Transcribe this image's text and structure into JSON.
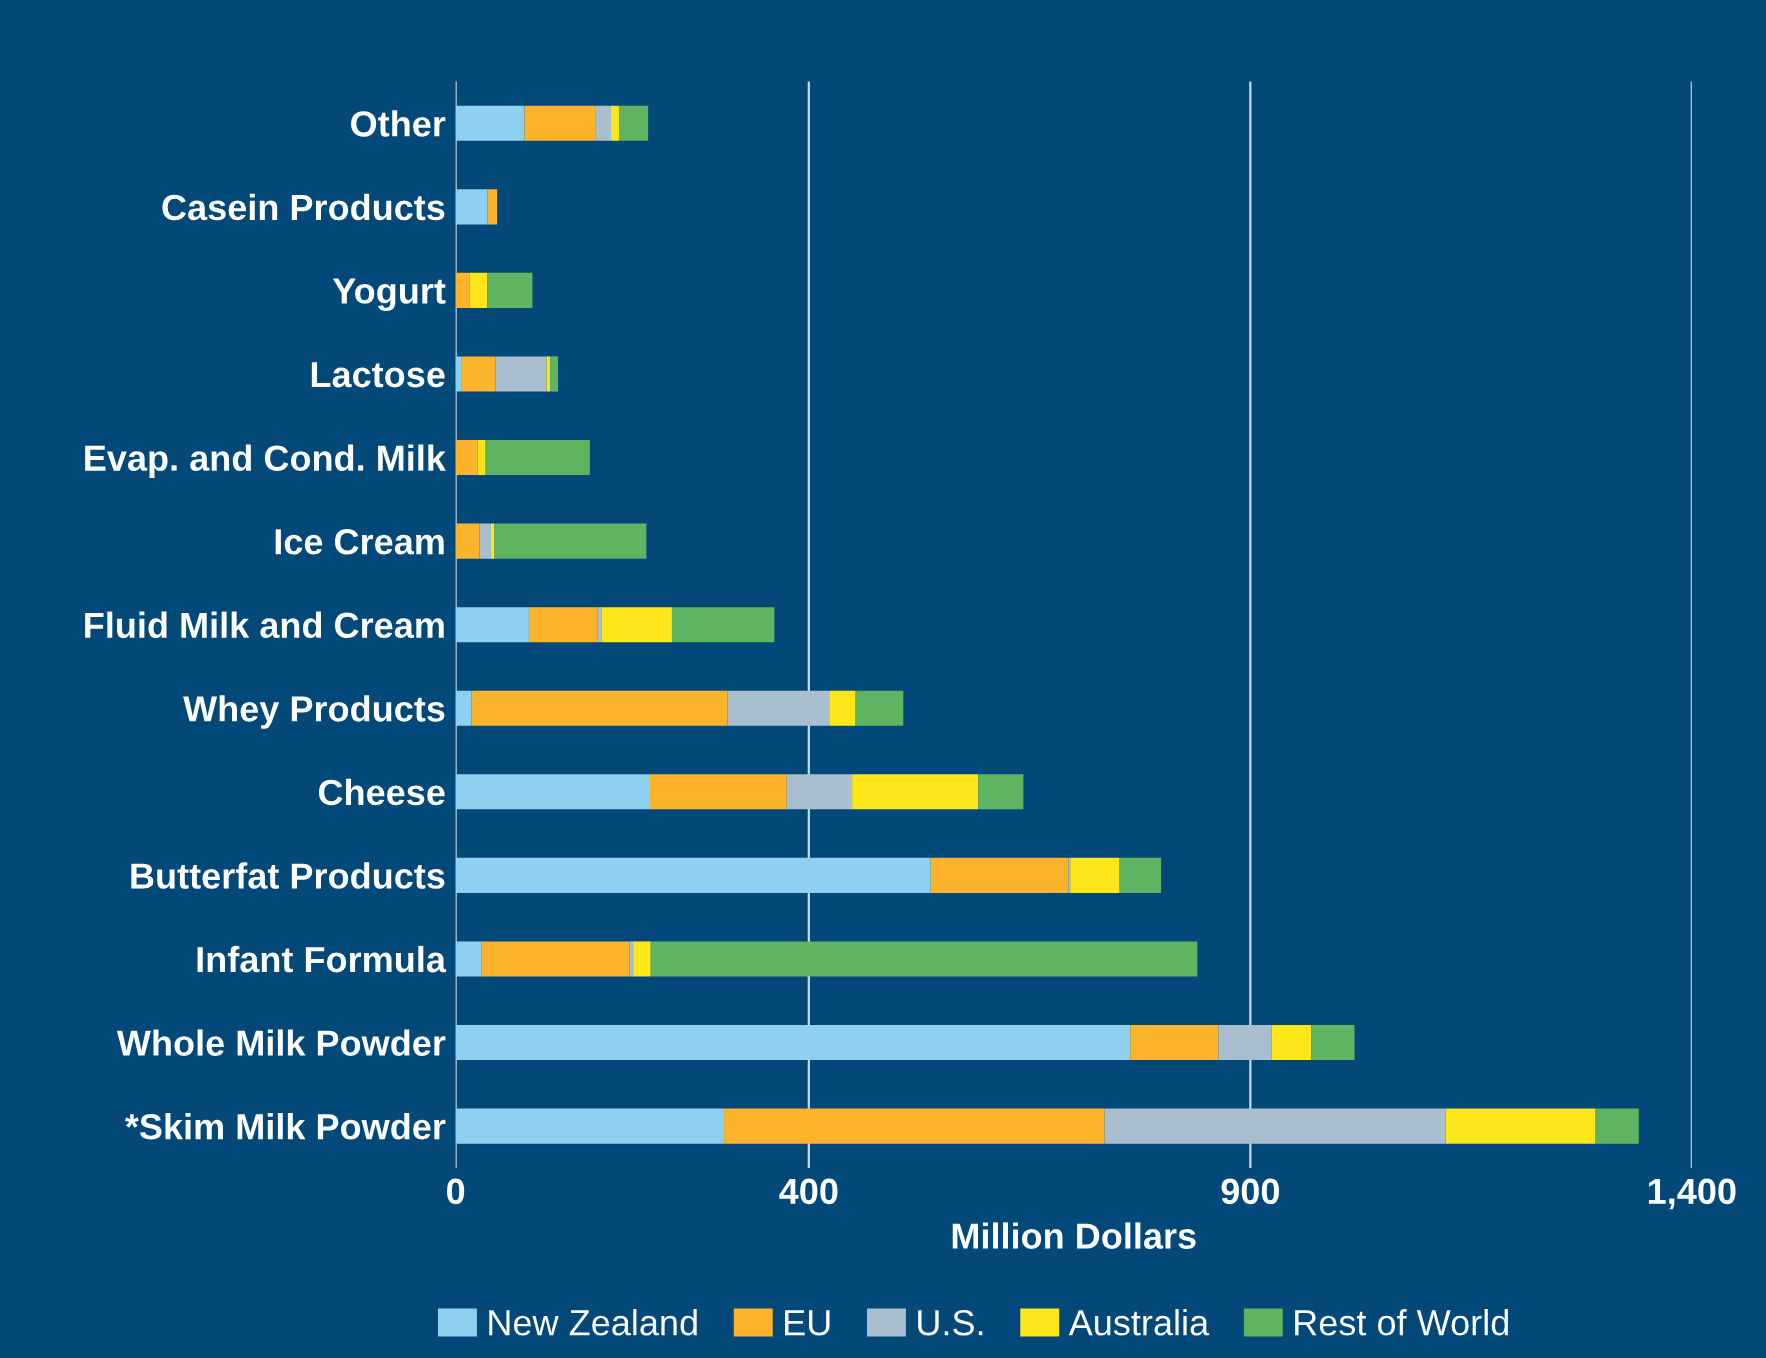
{
  "chart_data": {
    "type": "bar",
    "orientation": "horizontal",
    "stacked": true,
    "xlabel": "Million Dollars",
    "categories": [
      "Other",
      "Casein Products",
      "Yogurt",
      "Lactose",
      "Evap. and Cond. Milk",
      "Ice Cream",
      "Fluid Milk and Cream",
      "Whey Products",
      "Cheese",
      "Butterfat Products",
      "Infant Formula",
      "Whole Milk Powder",
      "*Skim Milk Powder"
    ],
    "series": [
      {
        "name": "New Zealand",
        "color": "#8dd0f0",
        "values": [
          78,
          36,
          0,
          7,
          0,
          0,
          83,
          18,
          219,
          538,
          29,
          764,
          304
        ]
      },
      {
        "name": "EU",
        "color": "#fbb42c",
        "values": [
          80,
          11,
          16,
          38,
          25,
          27,
          78,
          290,
          156,
          156,
          168,
          100,
          431
        ]
      },
      {
        "name": "U.S.",
        "color": "#a9bfcf",
        "values": [
          18,
          0,
          0,
          58,
          0,
          13,
          4,
          116,
          74,
          2,
          4,
          60,
          386
        ]
      },
      {
        "name": "Australia",
        "color": "#fde61a",
        "values": [
          9,
          0,
          20,
          4,
          9,
          4,
          80,
          29,
          143,
          56,
          20,
          45,
          170
        ]
      },
      {
        "name": "Rest of World",
        "color": "#5fb462",
        "values": [
          33,
          0,
          51,
          9,
          118,
          172,
          116,
          54,
          51,
          47,
          619,
          49,
          49
        ]
      }
    ],
    "xlim": [
      0,
      1400
    ],
    "xticks": [
      0,
      400,
      900,
      {
        "value": 1400,
        "label": "1,400"
      }
    ],
    "grid": "x",
    "legend": "bottom"
  }
}
